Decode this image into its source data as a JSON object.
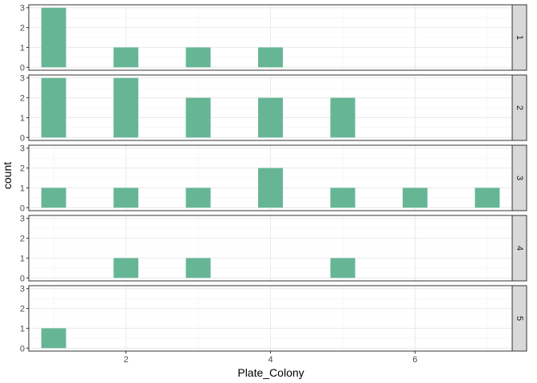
{
  "chart_data": {
    "type": "bar",
    "facet_rows": [
      "1",
      "2",
      "3",
      "4",
      "5"
    ],
    "x_ticks": [
      2,
      4,
      6
    ],
    "y_ticks": [
      0,
      1,
      2,
      3
    ],
    "xlim": [
      0.655,
      7.345
    ],
    "ylim": [
      -0.15,
      3.15
    ],
    "xlabel": "Plate_Colony",
    "ylabel": "count",
    "bar_color": "#66b696",
    "grid": true,
    "panels": [
      {
        "facet": "1",
        "bars": [
          {
            "x": 1,
            "count": 3
          },
          {
            "x": 2,
            "count": 1
          },
          {
            "x": 3,
            "count": 1
          },
          {
            "x": 4,
            "count": 1
          }
        ]
      },
      {
        "facet": "2",
        "bars": [
          {
            "x": 1,
            "count": 3
          },
          {
            "x": 2,
            "count": 3
          },
          {
            "x": 3,
            "count": 2
          },
          {
            "x": 4,
            "count": 2
          },
          {
            "x": 5,
            "count": 2
          }
        ]
      },
      {
        "facet": "3",
        "bars": [
          {
            "x": 1,
            "count": 1
          },
          {
            "x": 2,
            "count": 1
          },
          {
            "x": 3,
            "count": 1
          },
          {
            "x": 4,
            "count": 2
          },
          {
            "x": 5,
            "count": 1
          },
          {
            "x": 6,
            "count": 1
          },
          {
            "x": 7,
            "count": 1
          }
        ]
      },
      {
        "facet": "4",
        "bars": [
          {
            "x": 2,
            "count": 1
          },
          {
            "x": 3,
            "count": 1
          },
          {
            "x": 5,
            "count": 1
          }
        ]
      },
      {
        "facet": "5",
        "bars": [
          {
            "x": 1,
            "count": 1
          }
        ]
      }
    ]
  }
}
